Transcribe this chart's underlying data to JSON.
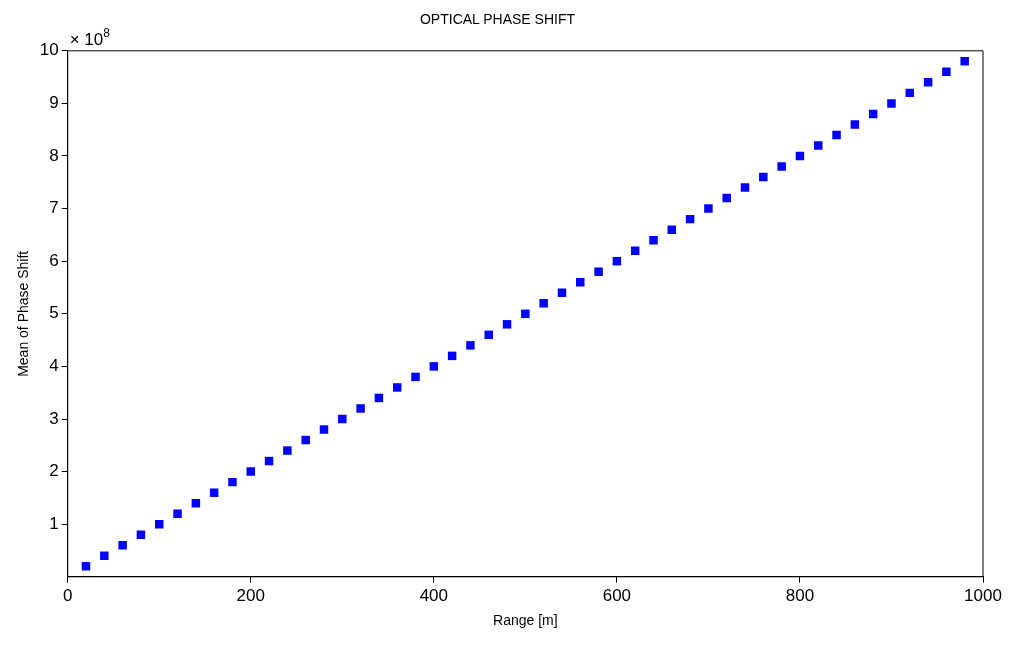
{
  "chart_data": {
    "type": "scatter",
    "title": "OPTICAL PHASE SHIFT",
    "xlabel": "Range [m]",
    "ylabel": "Mean of Phase Shift",
    "annotations": [
      "× 10$^{8}$"
    ],
    "x": [
      20,
      40,
      60,
      80,
      100,
      120,
      140,
      160,
      180,
      200,
      220,
      240,
      260,
      280,
      300,
      320,
      340,
      360,
      380,
      400,
      420,
      440,
      460,
      480,
      500,
      520,
      540,
      560,
      580,
      600,
      620,
      640,
      660,
      680,
      700,
      720,
      740,
      760,
      780,
      800,
      820,
      840,
      860,
      880,
      900,
      920,
      940,
      960,
      980
    ],
    "series": [
      {
        "color": "#0000ff",
        "values": [
          0.2,
          0.4,
          0.6,
          0.8,
          1.0,
          1.2,
          1.4,
          1.6,
          1.8,
          2.0,
          2.2,
          2.4,
          2.6,
          2.8,
          3.0,
          3.2,
          3.4,
          3.6,
          3.8,
          4.0,
          4.2,
          4.4,
          4.6,
          4.8,
          5.0,
          5.2,
          5.4,
          5.6,
          5.8,
          6.0,
          6.2,
          6.4,
          6.6,
          6.8,
          7.0,
          7.2,
          7.4,
          7.6,
          7.8,
          8.0,
          8.2,
          8.4,
          8.6,
          8.8,
          9.0,
          9.2,
          9.4,
          9.6,
          9.8
        ]
      }
    ],
    "xlim": [
      0,
      1000
    ],
    "xticks": [
      0,
      200,
      400,
      600,
      800,
      1000
    ],
    "ylim": [
      0,
      10
    ],
    "yticks": [
      1,
      2,
      3,
      4,
      5,
      6,
      7,
      8,
      9,
      10
    ],
    "marker": "square",
    "grid": false,
    "legend": false
  }
}
